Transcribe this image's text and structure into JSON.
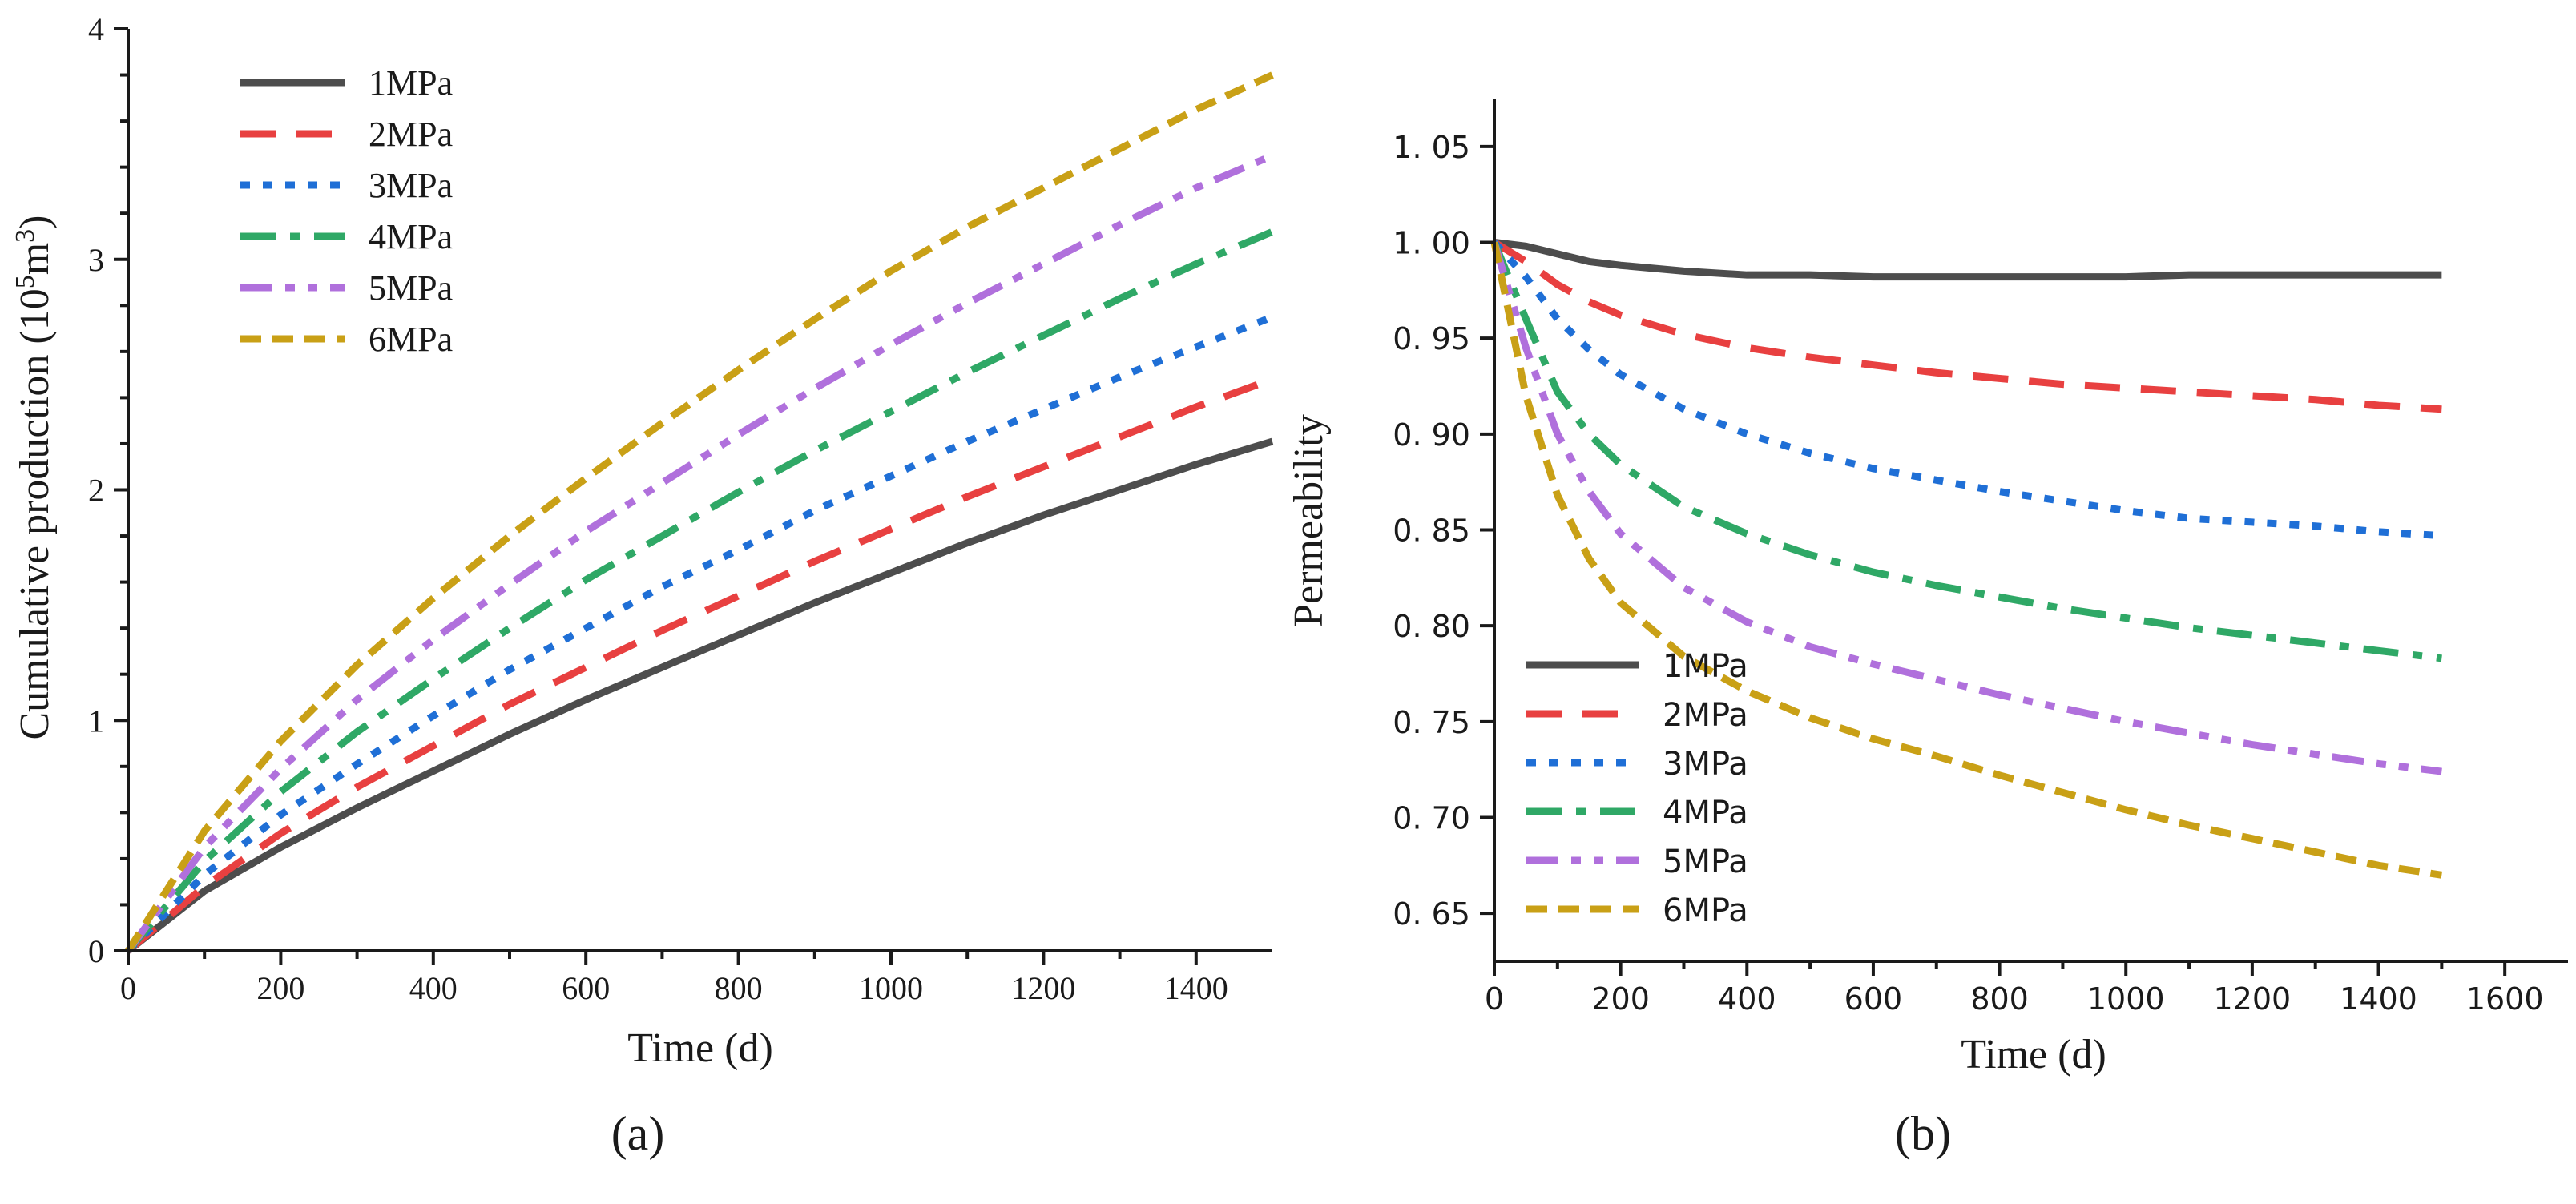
{
  "chart_data": [
    {
      "panel": "(a)",
      "type": "line",
      "xlabel": "Time (d)",
      "ylabel": "Cumulative production (10",
      "ylabel_sup1": "5",
      "ylabel_mid": "m",
      "ylabel_sup2": "3",
      "ylabel_end": ")",
      "xlim": [
        0,
        1500
      ],
      "ylim": [
        0,
        4
      ],
      "xticks": [
        0,
        200,
        400,
        600,
        800,
        1000,
        1200,
        1400
      ],
      "yticks": [
        0,
        1,
        2,
        3,
        4
      ],
      "legend_position": "top-left",
      "x": [
        0,
        100,
        200,
        300,
        400,
        500,
        600,
        700,
        800,
        900,
        1000,
        1100,
        1200,
        1300,
        1400,
        1500
      ],
      "series": [
        {
          "name": "1MPa",
          "color": "#4d4d4d",
          "dash": "solid",
          "values": [
            0,
            0.26,
            0.45,
            0.62,
            0.78,
            0.94,
            1.09,
            1.23,
            1.37,
            1.51,
            1.64,
            1.77,
            1.89,
            2.0,
            2.11,
            2.21
          ]
        },
        {
          "name": "2MPa",
          "color": "#e84040",
          "dash": "dash",
          "values": [
            0,
            0.28,
            0.51,
            0.71,
            0.89,
            1.07,
            1.23,
            1.39,
            1.54,
            1.69,
            1.83,
            1.97,
            2.1,
            2.23,
            2.36,
            2.48
          ]
        },
        {
          "name": "3MPa",
          "color": "#1f6fd6",
          "dash": "dot",
          "values": [
            0,
            0.33,
            0.59,
            0.81,
            1.02,
            1.22,
            1.4,
            1.58,
            1.74,
            1.91,
            2.06,
            2.21,
            2.35,
            2.49,
            2.62,
            2.75
          ]
        },
        {
          "name": "4MPa",
          "color": "#2fa866",
          "dash": "dashdot",
          "values": [
            0,
            0.39,
            0.69,
            0.95,
            1.18,
            1.4,
            1.61,
            1.8,
            1.99,
            2.17,
            2.34,
            2.51,
            2.67,
            2.83,
            2.98,
            3.12
          ]
        },
        {
          "name": "5MPa",
          "color": "#b070dc",
          "dash": "dashdotdot",
          "values": [
            0,
            0.45,
            0.79,
            1.09,
            1.35,
            1.59,
            1.82,
            2.03,
            2.24,
            2.44,
            2.63,
            2.81,
            2.98,
            3.15,
            3.31,
            3.45
          ]
        },
        {
          "name": "6MPa",
          "color": "#c9a016",
          "dash": "shortdash",
          "values": [
            0,
            0.52,
            0.91,
            1.24,
            1.53,
            1.8,
            2.05,
            2.29,
            2.52,
            2.74,
            2.95,
            3.14,
            3.31,
            3.48,
            3.65,
            3.8
          ]
        }
      ]
    },
    {
      "panel": "(b)",
      "type": "line",
      "xlabel": "Time (d)",
      "ylabel": "Permeability",
      "xlim": [
        0,
        1700
      ],
      "ylim": [
        0.625,
        1.075
      ],
      "xticks": [
        0,
        200,
        400,
        600,
        800,
        1000,
        1200,
        1400,
        1600
      ],
      "yticks": [
        0.65,
        0.7,
        0.75,
        0.8,
        0.85,
        0.9,
        0.95,
        1.0,
        1.05
      ],
      "ytick_labels": [
        "0. 65",
        "0. 70",
        "0. 75",
        "0. 80",
        "0. 85",
        "0. 90",
        "0. 95",
        "1. 00",
        "1. 05"
      ],
      "legend_position": "bottom-left",
      "x": [
        0,
        50,
        100,
        150,
        200,
        300,
        400,
        500,
        600,
        700,
        800,
        900,
        1000,
        1100,
        1200,
        1300,
        1400,
        1500
      ],
      "series": [
        {
          "name": "1MPa",
          "color": "#4d4d4d",
          "dash": "solid",
          "values": [
            1.0,
            0.998,
            0.994,
            0.99,
            0.988,
            0.985,
            0.983,
            0.983,
            0.982,
            0.982,
            0.982,
            0.982,
            0.982,
            0.983,
            0.983,
            0.983,
            0.983,
            0.983
          ]
        },
        {
          "name": "2MPa",
          "color": "#e84040",
          "dash": "dash",
          "values": [
            1.0,
            0.99,
            0.978,
            0.969,
            0.962,
            0.952,
            0.945,
            0.94,
            0.936,
            0.932,
            0.929,
            0.926,
            0.924,
            0.922,
            0.92,
            0.918,
            0.915,
            0.913
          ]
        },
        {
          "name": "3MPa",
          "color": "#1f6fd6",
          "dash": "dot",
          "values": [
            1.0,
            0.982,
            0.96,
            0.944,
            0.931,
            0.913,
            0.9,
            0.89,
            0.882,
            0.876,
            0.87,
            0.865,
            0.86,
            0.856,
            0.854,
            0.852,
            0.849,
            0.847
          ]
        },
        {
          "name": "4MPa",
          "color": "#2fa866",
          "dash": "dashdot",
          "values": [
            1.0,
            0.96,
            0.922,
            0.9,
            0.884,
            0.862,
            0.848,
            0.837,
            0.828,
            0.821,
            0.815,
            0.809,
            0.804,
            0.799,
            0.795,
            0.791,
            0.787,
            0.783
          ]
        },
        {
          "name": "5MPa",
          "color": "#b070dc",
          "dash": "dashdotdot",
          "values": [
            1.0,
            0.945,
            0.9,
            0.87,
            0.848,
            0.82,
            0.802,
            0.789,
            0.78,
            0.772,
            0.764,
            0.757,
            0.75,
            0.744,
            0.738,
            0.733,
            0.728,
            0.724
          ]
        },
        {
          "name": "6MPa",
          "color": "#c9a016",
          "dash": "shortdash",
          "values": [
            1.0,
            0.92,
            0.868,
            0.835,
            0.812,
            0.784,
            0.766,
            0.752,
            0.741,
            0.732,
            0.722,
            0.713,
            0.704,
            0.696,
            0.689,
            0.682,
            0.675,
            0.67
          ]
        }
      ]
    }
  ]
}
